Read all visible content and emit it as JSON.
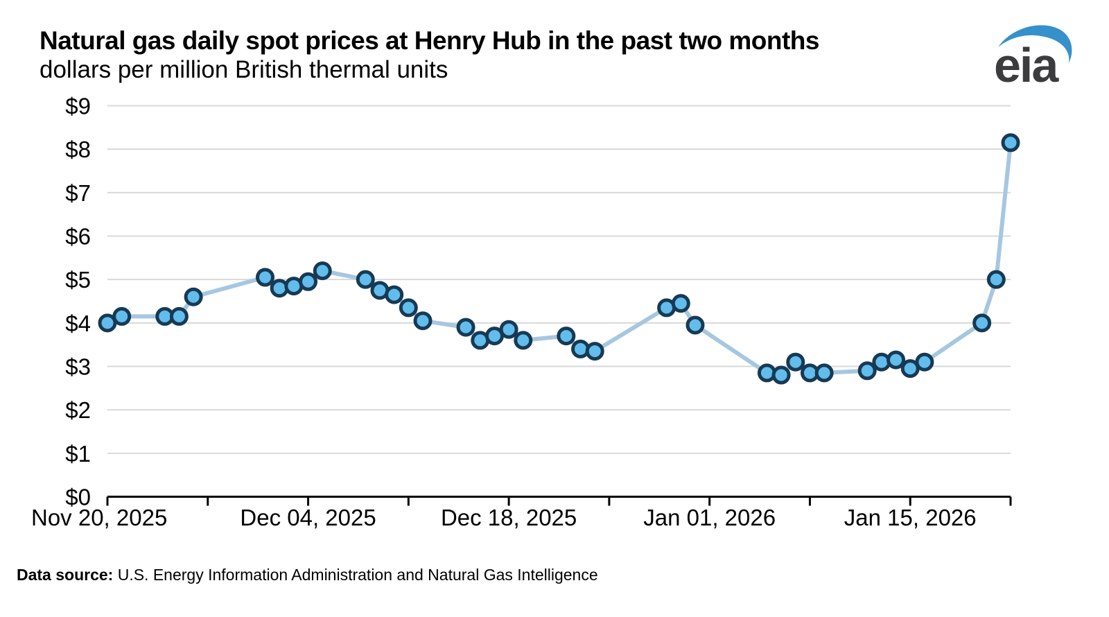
{
  "header": {
    "title": "Natural gas daily spot prices at Henry Hub in the past two months",
    "subtitle": "dollars per million British thermal units"
  },
  "logo": {
    "text": "eia",
    "text_color": "#3c3c3e",
    "swoosh_color": "#3590cb"
  },
  "footer": {
    "label": "Data source:",
    "text": " U.S. Energy Information Administration and Natural Gas Intelligence"
  },
  "chart_data": {
    "type": "line",
    "title": "Natural gas daily spot prices at Henry Hub in the past two months",
    "ylabel": "dollars per million British thermal units",
    "xlabel": "",
    "ylim": [
      0,
      9
    ],
    "grid": true,
    "legend": false,
    "yticks": [
      0,
      1,
      2,
      3,
      4,
      5,
      6,
      7,
      8,
      9
    ],
    "y_tick_labels": [
      "$0",
      "$1",
      "$2",
      "$3",
      "$4",
      "$5",
      "$6",
      "$7",
      "$8",
      "$9"
    ],
    "x_range_days": [
      0,
      63
    ],
    "x_minor_tick_days": [
      0,
      7,
      14,
      21,
      28,
      35,
      42,
      49,
      56,
      63
    ],
    "x_labeled_tick_days": [
      0,
      14,
      28,
      42,
      56
    ],
    "x_tick_labels": [
      "Nov 20, 2025",
      "Dec 04, 2025",
      "Dec 18, 2025",
      "Jan 01, 2026",
      "Jan 15, 2026"
    ],
    "colors": {
      "line": "#a6c7e0",
      "marker_fill": "#62bdec",
      "marker_stroke": "#173a54",
      "gridline": "#d9d9d9",
      "axis": "#000000"
    },
    "series": [
      {
        "name": "Henry Hub daily spot price",
        "points": [
          {
            "date": "Nov 20, 2025",
            "day": 0,
            "value": 4.0
          },
          {
            "date": "Nov 21, 2025",
            "day": 1,
            "value": 4.15
          },
          {
            "date": "Nov 24, 2025",
            "day": 4,
            "value": 4.15
          },
          {
            "date": "Nov 25, 2025",
            "day": 5,
            "value": 4.15
          },
          {
            "date": "Nov 26, 2025",
            "day": 6,
            "value": 4.6
          },
          {
            "date": "Dec 01, 2025",
            "day": 11,
            "value": 5.05
          },
          {
            "date": "Dec 02, 2025",
            "day": 12,
            "value": 4.8
          },
          {
            "date": "Dec 03, 2025",
            "day": 13,
            "value": 4.85
          },
          {
            "date": "Dec 04, 2025",
            "day": 14,
            "value": 4.95
          },
          {
            "date": "Dec 05, 2025",
            "day": 15,
            "value": 5.2
          },
          {
            "date": "Dec 08, 2025",
            "day": 18,
            "value": 5.0
          },
          {
            "date": "Dec 09, 2025",
            "day": 19,
            "value": 4.75
          },
          {
            "date": "Dec 10, 2025",
            "day": 20,
            "value": 4.65
          },
          {
            "date": "Dec 11, 2025",
            "day": 21,
            "value": 4.35
          },
          {
            "date": "Dec 12, 2025",
            "day": 22,
            "value": 4.05
          },
          {
            "date": "Dec 15, 2025",
            "day": 25,
            "value": 3.9
          },
          {
            "date": "Dec 16, 2025",
            "day": 26,
            "value": 3.6
          },
          {
            "date": "Dec 17, 2025",
            "day": 27,
            "value": 3.7
          },
          {
            "date": "Dec 18, 2025",
            "day": 28,
            "value": 3.85
          },
          {
            "date": "Dec 19, 2025",
            "day": 29,
            "value": 3.6
          },
          {
            "date": "Dec 22, 2025",
            "day": 32,
            "value": 3.7
          },
          {
            "date": "Dec 23, 2025",
            "day": 33,
            "value": 3.4
          },
          {
            "date": "Dec 24, 2025",
            "day": 34,
            "value": 3.35
          },
          {
            "date": "Dec 29, 2025",
            "day": 39,
            "value": 4.35
          },
          {
            "date": "Dec 30, 2025",
            "day": 40,
            "value": 4.45
          },
          {
            "date": "Dec 31, 2025",
            "day": 41,
            "value": 3.95
          },
          {
            "date": "Jan 05, 2026",
            "day": 46,
            "value": 2.85
          },
          {
            "date": "Jan 06, 2026",
            "day": 47,
            "value": 2.8
          },
          {
            "date": "Jan 07, 2026",
            "day": 48,
            "value": 3.1
          },
          {
            "date": "Jan 08, 2026",
            "day": 49,
            "value": 2.85
          },
          {
            "date": "Jan 09, 2026",
            "day": 50,
            "value": 2.85
          },
          {
            "date": "Jan 12, 2026",
            "day": 53,
            "value": 2.9
          },
          {
            "date": "Jan 13, 2026",
            "day": 54,
            "value": 3.1
          },
          {
            "date": "Jan 14, 2026",
            "day": 55,
            "value": 3.15
          },
          {
            "date": "Jan 15, 2026",
            "day": 56,
            "value": 2.95
          },
          {
            "date": "Jan 16, 2026",
            "day": 57,
            "value": 3.1
          },
          {
            "date": "Jan 20, 2026",
            "day": 61,
            "value": 4.0
          },
          {
            "date": "Jan 21, 2026",
            "day": 62,
            "value": 5.0
          },
          {
            "date": "Jan 22, 2026",
            "day": 63,
            "value": 8.15
          }
        ]
      }
    ]
  }
}
